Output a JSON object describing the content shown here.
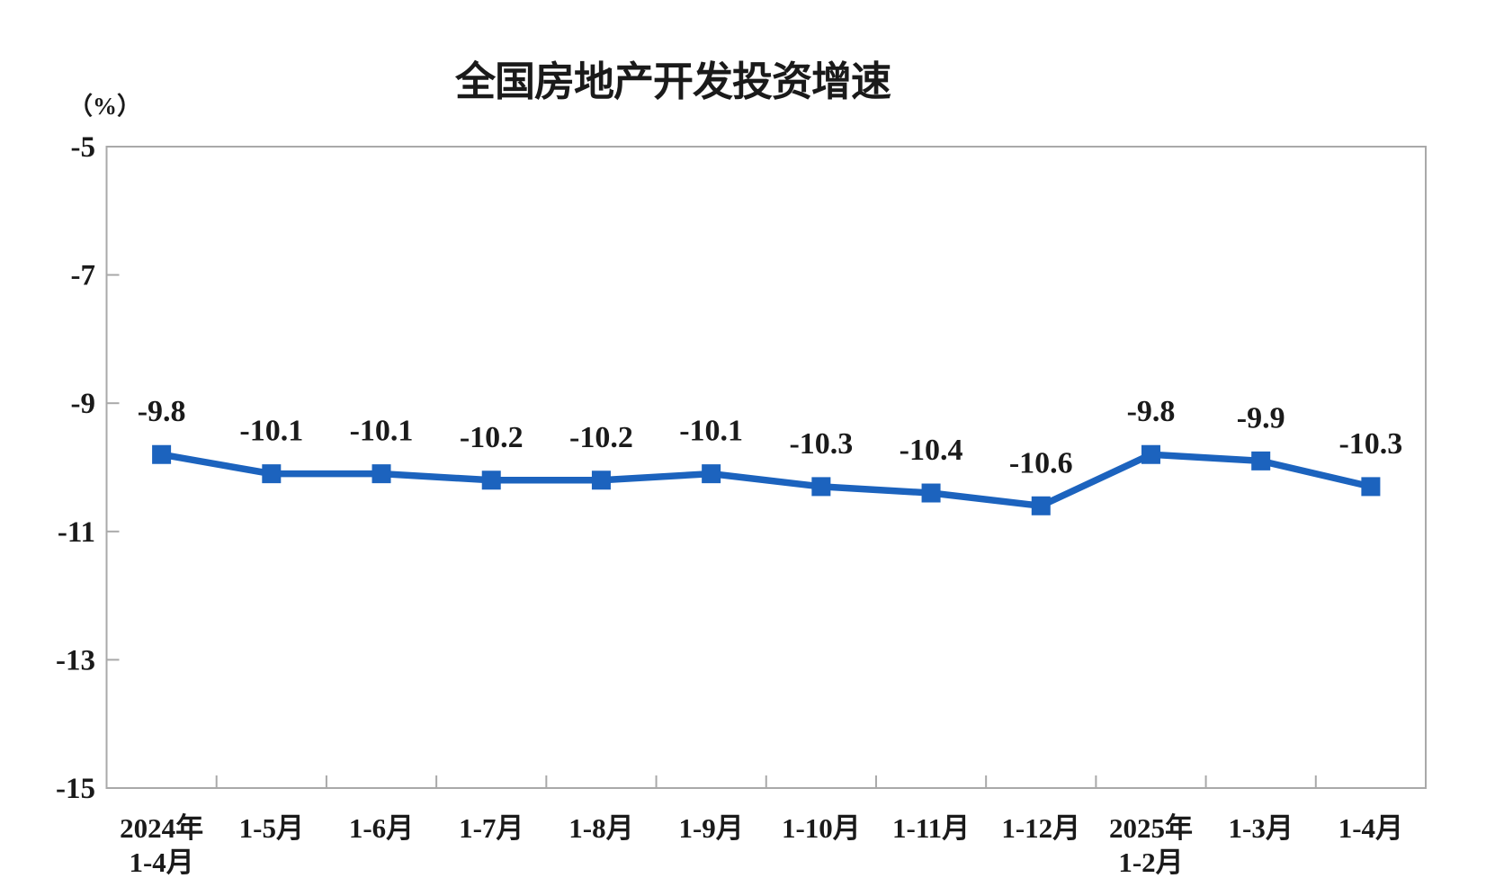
{
  "chart_data": {
    "type": "line",
    "title": "全国房地产开发投资增速",
    "ylabel": "（%）",
    "xlabel": "",
    "categories": [
      [
        "2024年",
        "1-4月"
      ],
      [
        "1-5月"
      ],
      [
        "1-6月"
      ],
      [
        "1-7月"
      ],
      [
        "1-8月"
      ],
      [
        "1-9月"
      ],
      [
        "1-10月"
      ],
      [
        "1-11月"
      ],
      [
        "1-12月"
      ],
      [
        "2025年",
        "1-2月"
      ],
      [
        "1-3月"
      ],
      [
        "1-4月"
      ]
    ],
    "values": [
      -9.8,
      -10.1,
      -10.1,
      -10.2,
      -10.2,
      -10.1,
      -10.3,
      -10.4,
      -10.6,
      -9.8,
      -9.9,
      -10.3
    ],
    "data_labels": [
      "-9.8",
      "-10.1",
      "-10.1",
      "-10.2",
      "-10.2",
      "-10.1",
      "-10.3",
      "-10.4",
      "-10.6",
      "-9.8",
      "-9.9",
      "-10.3"
    ],
    "y_tick_labels": [
      "-5",
      "-7",
      "-9",
      "-11",
      "-13",
      "-15"
    ],
    "y_ticks": [
      -5,
      -7,
      -9,
      -11,
      -13,
      -15
    ],
    "ylim": [
      -15,
      -5
    ],
    "grid": false,
    "legend_position": "none",
    "marker": "square",
    "colors": {
      "series": "#1C63BE",
      "axis": "#A9A9A9",
      "text": "#1A1A1A",
      "background": "#FFFFFF"
    }
  }
}
